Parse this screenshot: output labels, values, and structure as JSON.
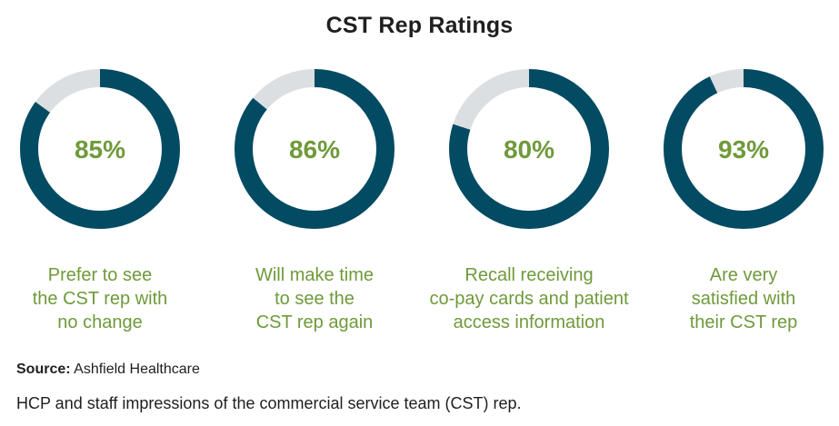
{
  "chart_data": {
    "type": "pie",
    "title": "CST Rep Ratings",
    "colors": {
      "filled": "#034b63",
      "remainder": "#dcdfe1",
      "value_text": "#6f9a3a",
      "label_text": "#6f9a3a"
    },
    "series": [
      {
        "value": 85,
        "value_label": "85%",
        "label_lines": [
          "Prefer to see",
          "the CST rep with",
          "no change"
        ]
      },
      {
        "value": 86,
        "value_label": "86%",
        "label_lines": [
          "Will make time",
          "to see the",
          "CST rep again"
        ]
      },
      {
        "value": 80,
        "value_label": "80%",
        "label_lines": [
          "Recall receiving",
          "co-pay cards and patient",
          "access information"
        ]
      },
      {
        "value": 93,
        "value_label": "93%",
        "label_lines": [
          "Are very",
          "satisfied with",
          "their CST rep"
        ]
      }
    ]
  },
  "source": {
    "label": "Source:",
    "text": "Ashfield Healthcare"
  },
  "caption": "HCP and staff impressions of the commercial service team (CST) rep."
}
